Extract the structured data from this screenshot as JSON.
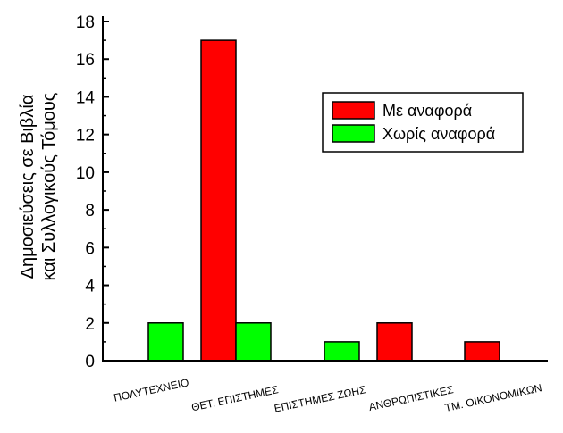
{
  "chart_data": {
    "type": "bar",
    "categories": [
      "ΠΟΛΥΤΕΧΝΕΙΟ",
      "ΘΕΤ. ΕΠΙΣΤΗΜΕΣ",
      "ΕΠΙΣΤΗΜΕΣ ΖΩΗΣ",
      "ΑΝΘΡΩΠΙΣΤΙΚΕΣ",
      "ΤΜ. ΟΙΚΟΝΟΜΙΚΩΝ"
    ],
    "series": [
      {
        "name": "Με αναφορά",
        "color": "#ff0000",
        "values": [
          0,
          17,
          0,
          2,
          1
        ]
      },
      {
        "name": "Χωρίς αναφορά",
        "color": "#00ff00",
        "values": [
          2,
          2,
          1,
          0,
          0
        ]
      }
    ],
    "ylabel_lines": [
      "Δημοσιεύσεις σε Βιβλία",
      "και Συλλογικούς Τόμους"
    ],
    "xlabel": "",
    "ylim": [
      0,
      18
    ],
    "yticks": [
      0,
      2,
      4,
      6,
      8,
      10,
      12,
      14,
      16,
      18
    ],
    "grid": false,
    "legend_position": "top-right"
  }
}
